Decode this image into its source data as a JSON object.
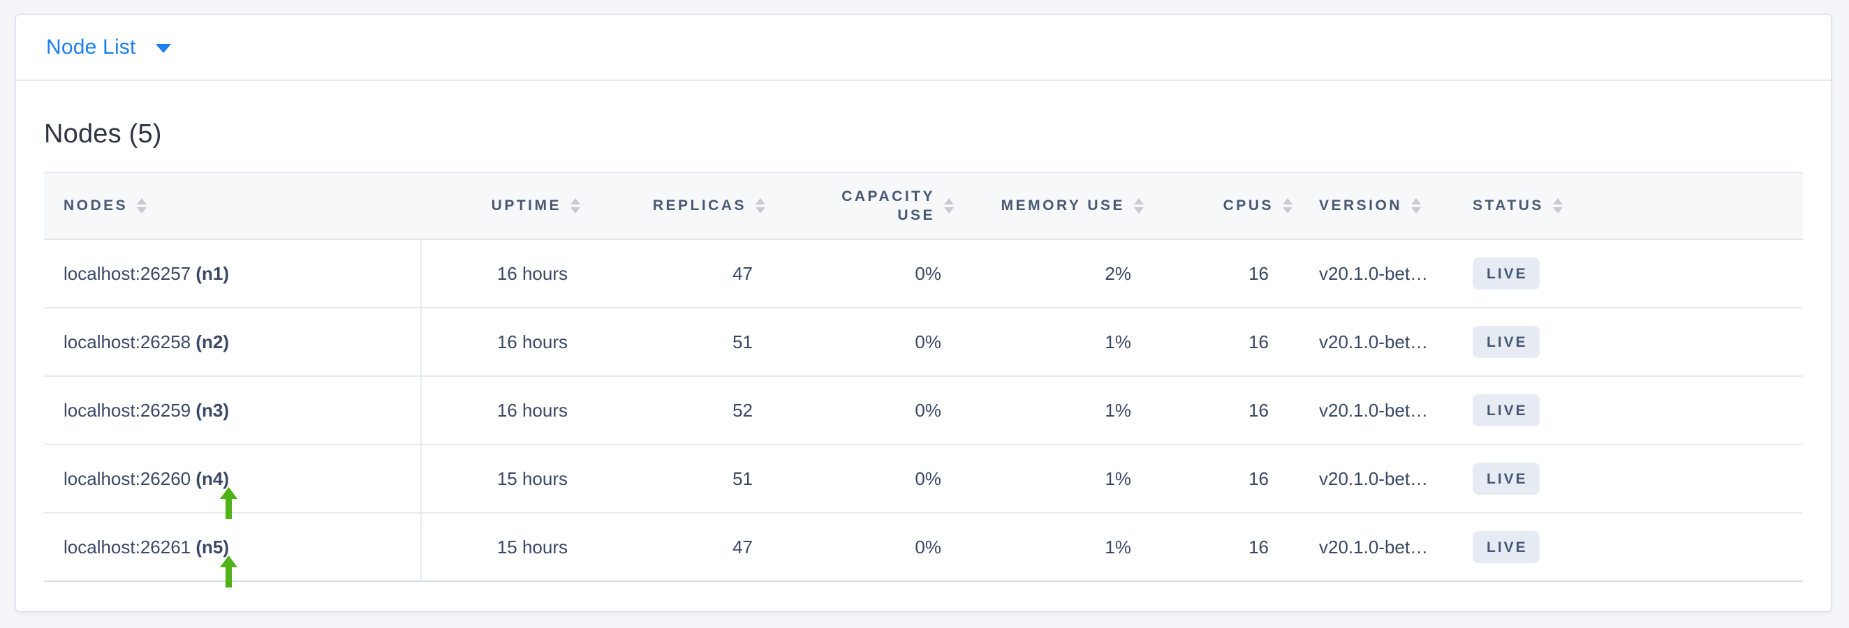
{
  "topbar": {
    "dropdown_label": "Node List",
    "dropdown_icon": "caret-down-icon"
  },
  "heading": "Nodes (5)",
  "table": {
    "columns": [
      {
        "key": "nodes",
        "label": "NODES",
        "align": "left",
        "sortable": true
      },
      {
        "key": "uptime",
        "label": "UPTIME",
        "align": "right",
        "sortable": true
      },
      {
        "key": "replicas",
        "label": "REPLICAS",
        "align": "right",
        "sortable": true
      },
      {
        "key": "capacity_use",
        "label": "CAPACITY USE",
        "label_lines": [
          "CAPACITY",
          "USE"
        ],
        "align": "right",
        "sortable": true
      },
      {
        "key": "memory_use",
        "label": "MEMORY USE",
        "align": "right",
        "sortable": true
      },
      {
        "key": "cpus",
        "label": "CPUS",
        "align": "right",
        "sortable": true
      },
      {
        "key": "version",
        "label": "VERSION",
        "align": "left",
        "sortable": true
      },
      {
        "key": "status",
        "label": "STATUS",
        "align": "left",
        "sortable": true
      }
    ],
    "rows": [
      {
        "address": "localhost:26257",
        "node_id": "(n1)",
        "uptime": "16 hours",
        "replicas": "47",
        "capacity_use": "0%",
        "memory_use": "2%",
        "cpus": "16",
        "version": "v20.1.0-bet…",
        "status": "LIVE",
        "arrow": false
      },
      {
        "address": "localhost:26258",
        "node_id": "(n2)",
        "uptime": "16 hours",
        "replicas": "51",
        "capacity_use": "0%",
        "memory_use": "1%",
        "cpus": "16",
        "version": "v20.1.0-bet…",
        "status": "LIVE",
        "arrow": false
      },
      {
        "address": "localhost:26259",
        "node_id": "(n3)",
        "uptime": "16 hours",
        "replicas": "52",
        "capacity_use": "0%",
        "memory_use": "1%",
        "cpus": "16",
        "version": "v20.1.0-bet…",
        "status": "LIVE",
        "arrow": false
      },
      {
        "address": "localhost:26260",
        "node_id": "(n4)",
        "uptime": "15 hours",
        "replicas": "51",
        "capacity_use": "0%",
        "memory_use": "1%",
        "cpus": "16",
        "version": "v20.1.0-bet…",
        "status": "LIVE",
        "arrow": true
      },
      {
        "address": "localhost:26261",
        "node_id": "(n5)",
        "uptime": "15 hours",
        "replicas": "47",
        "capacity_use": "0%",
        "memory_use": "1%",
        "cpus": "16",
        "version": "v20.1.0-bet…",
        "status": "LIVE",
        "arrow": true
      }
    ]
  },
  "icons": {
    "sort": "sort-arrows-icon",
    "arrow": "green-up-arrow-icon"
  },
  "colors": {
    "accent_blue": "#1b7ff1",
    "arrow_green": "#4fb216",
    "badge_background": "#e7ebf3",
    "header_text": "#475872",
    "cell_text": "#3a4864",
    "page_background": "#f3f5f9"
  }
}
